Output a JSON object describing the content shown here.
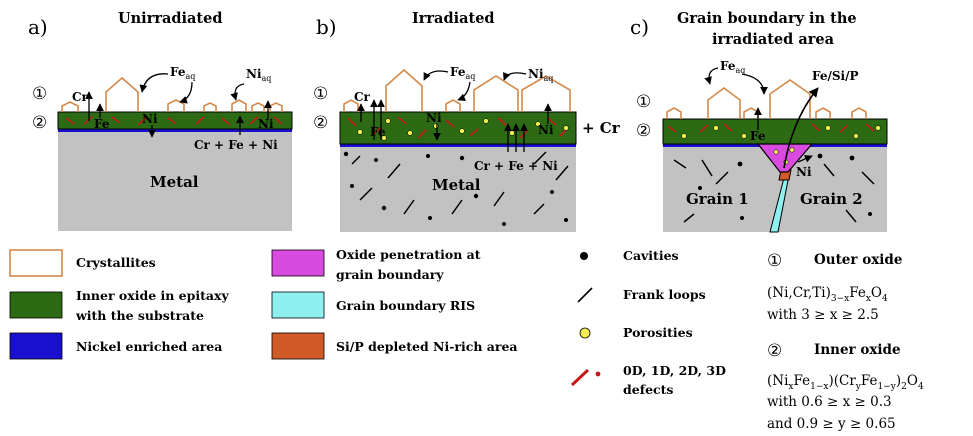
{
  "panels": [
    {
      "letter": "a)",
      "title_lines": [
        "Unirradiated"
      ]
    },
    {
      "letter": "b)",
      "title_lines": [
        "Irradiated"
      ]
    },
    {
      "letter": "c)",
      "title_lines": [
        "Grain boundary in the",
        "irradiated area"
      ]
    }
  ],
  "layer_markers": {
    "outer": "①",
    "inner": "②"
  },
  "panel_a": {
    "cr": "Cr",
    "fe": "Fe",
    "ni": "Ni",
    "ni_right": "Ni",
    "fe_aq": "Fe",
    "fe_aq_sub": "aq",
    "ni_aq": "Ni",
    "ni_aq_sub": "aq",
    "diffusion": "Cr + Fe + Ni",
    "metal": "Metal"
  },
  "panel_b": {
    "cr": "Cr",
    "fe": "Fe",
    "ni": "Ni",
    "ni_right": "Ni",
    "fe_aq": "Fe",
    "fe_aq_sub": "aq",
    "ni_aq": "Ni",
    "ni_aq_sub": "aq",
    "diffusion": "Cr + Fe + Ni",
    "plus_cr": "+ Cr",
    "metal": "Metal"
  },
  "panel_c": {
    "fe_aq": "Fe",
    "fe_aq_sub": "aq",
    "fesip": "Fe/Si/P",
    "fe": "Fe",
    "ni": "Ni",
    "grain1": "Grain 1",
    "grain2": "Grain 2"
  },
  "legend": {
    "crystallites": "Crystallites",
    "inner_oxide": [
      "Inner oxide in epitaxy",
      "with the substrate"
    ],
    "nickel": "Nickel enriched area",
    "oxide_penetration": [
      "Oxide penetration at",
      "grain boundary"
    ],
    "gb_ris": "Grain boundary RIS",
    "sip": "Si/P depleted Ni-rich area",
    "cavities": "Cavities",
    "frank": "Frank loops",
    "porosities": "Porosities",
    "defects": [
      "0D, 1D, 2D, 3D",
      "defects"
    ]
  },
  "outer_oxide": {
    "marker": "①",
    "title": "Outer oxide",
    "formula": "(Ni,Cr,Ti)",
    "formula_sub": "3−x",
    "formula_fe": "Fe",
    "formula_fe_sub": "x",
    "formula_o": "O",
    "formula_o_sub": "4",
    "range": "with 3 ≥ x ≥ 2.5"
  },
  "inner_oxide": {
    "marker": "②",
    "title": "Inner oxide",
    "formula": "(Ni",
    "formula_p1": "x",
    "formula_fe": "Fe",
    "formula_p2": "1−x",
    "formula_cr": ")(Cr",
    "formula_p3": "y",
    "formula_fe2": "Fe",
    "formula_p4": "1−y",
    "formula_end": ")",
    "formula_p5": "2",
    "formula_o": "O",
    "formula_p6": "4",
    "range_x": "with 0.6 ≥ x ≥ 0.3",
    "range_y": "and 0.9 ≥ y ≥ 0.65"
  },
  "colors": {
    "crystallite": "#d4894a",
    "inner_oxide": "#2d6a14",
    "nickel": "#1a10d0",
    "metal": "#c2c2c2",
    "penetration": "#d84ae0",
    "gb_ris": "#8ff0f0",
    "sip": "#d05a28",
    "porosity": "#f4f050",
    "defect": "#c41818"
  }
}
